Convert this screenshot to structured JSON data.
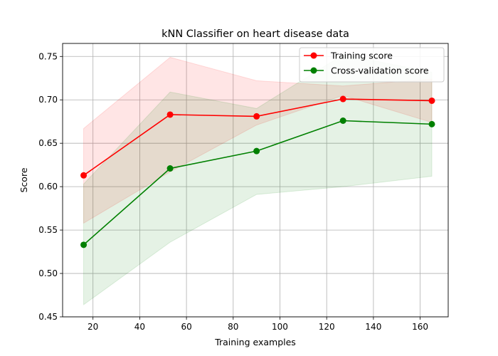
{
  "chart_data": {
    "type": "line",
    "title": "kNN Classifier on heart disease data",
    "xlabel": "Training examples",
    "ylabel": "Score",
    "xlim": [
      7,
      172
    ],
    "ylim": [
      0.45,
      0.765
    ],
    "xticks": [
      20,
      40,
      60,
      80,
      100,
      120,
      140,
      160
    ],
    "yticks": [
      0.45,
      0.5,
      0.55,
      0.6,
      0.65,
      0.7,
      0.75
    ],
    "ytick_labels": [
      "0.45",
      "0.50",
      "0.55",
      "0.60",
      "0.65",
      "0.70",
      "0.75"
    ],
    "grid": true,
    "legend_position": "upper right",
    "x": [
      16,
      53,
      90,
      127,
      165
    ],
    "series": [
      {
        "name": "Training score",
        "color": "#ff0000",
        "values": [
          0.613,
          0.683,
          0.681,
          0.701,
          0.699
        ],
        "band_lower": [
          0.558,
          0.617,
          0.671,
          0.705,
          0.674
        ],
        "band_upper": [
          0.667,
          0.749,
          0.722,
          0.716,
          0.724
        ],
        "band_color": "#ff0000",
        "band_opacity": 0.1
      },
      {
        "name": "Cross-validation score",
        "color": "#008000",
        "values": [
          0.533,
          0.621,
          0.641,
          0.676,
          0.672
        ],
        "band_lower": [
          0.464,
          0.536,
          0.591,
          0.6,
          0.612
        ],
        "band_upper": [
          0.603,
          0.709,
          0.69,
          0.752,
          0.732
        ],
        "band_color": "#008000",
        "band_opacity": 0.1
      }
    ]
  }
}
